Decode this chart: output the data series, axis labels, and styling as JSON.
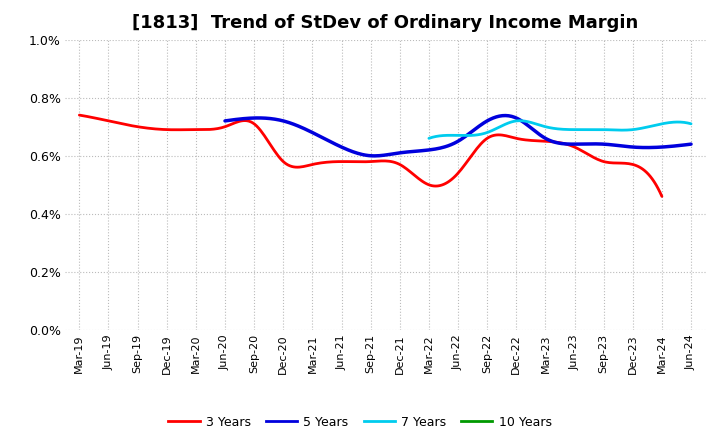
{
  "title": "[1813]  Trend of StDev of Ordinary Income Margin",
  "title_fontsize": 13,
  "background_color": "#ffffff",
  "plot_bg_color": "#ffffff",
  "grid_color": "#bbbbbb",
  "ylim": [
    0.0,
    0.01
  ],
  "yticks": [
    0.0,
    0.002,
    0.004,
    0.006,
    0.008,
    0.01
  ],
  "ytick_labels": [
    "0.0%",
    "0.2%",
    "0.4%",
    "0.6%",
    "0.8%",
    "1.0%"
  ],
  "x_labels": [
    "Mar-19",
    "Jun-19",
    "Sep-19",
    "Dec-19",
    "Mar-20",
    "Jun-20",
    "Sep-20",
    "Dec-20",
    "Mar-21",
    "Jun-21",
    "Sep-21",
    "Dec-21",
    "Mar-22",
    "Jun-22",
    "Sep-22",
    "Dec-22",
    "Mar-23",
    "Jun-23",
    "Sep-23",
    "Dec-23",
    "Mar-24",
    "Jun-24"
  ],
  "series": {
    "3 Years": {
      "color": "#ff0000",
      "linewidth": 2.0,
      "data": [
        0.0074,
        0.0072,
        0.007,
        0.0069,
        0.0069,
        0.007,
        0.0071,
        0.0058,
        0.0057,
        0.0058,
        0.0058,
        0.0057,
        0.005,
        0.0054,
        0.0066,
        0.0066,
        0.0065,
        0.0063,
        0.0058,
        0.0057,
        0.0046,
        null
      ]
    },
    "5 Years": {
      "color": "#0000dd",
      "linewidth": 2.5,
      "data": [
        null,
        null,
        null,
        null,
        null,
        0.0072,
        0.0073,
        0.0072,
        0.0068,
        0.0063,
        0.006,
        0.0061,
        0.0062,
        0.0065,
        0.0072,
        0.0073,
        0.0066,
        0.0064,
        0.0064,
        0.0063,
        0.0063,
        0.0064
      ]
    },
    "7 Years": {
      "color": "#00ccee",
      "linewidth": 2.0,
      "data": [
        null,
        null,
        null,
        null,
        null,
        null,
        null,
        null,
        null,
        null,
        null,
        null,
        0.0066,
        0.0067,
        0.0068,
        0.0072,
        0.007,
        0.0069,
        0.0069,
        0.0069,
        0.0071,
        0.0071
      ]
    },
    "10 Years": {
      "color": "#009900",
      "linewidth": 2.0,
      "data": [
        null,
        null,
        null,
        null,
        null,
        null,
        null,
        null,
        null,
        null,
        null,
        null,
        null,
        null,
        null,
        null,
        null,
        null,
        null,
        null,
        null,
        null
      ]
    }
  },
  "legend_order": [
    "3 Years",
    "5 Years",
    "7 Years",
    "10 Years"
  ]
}
